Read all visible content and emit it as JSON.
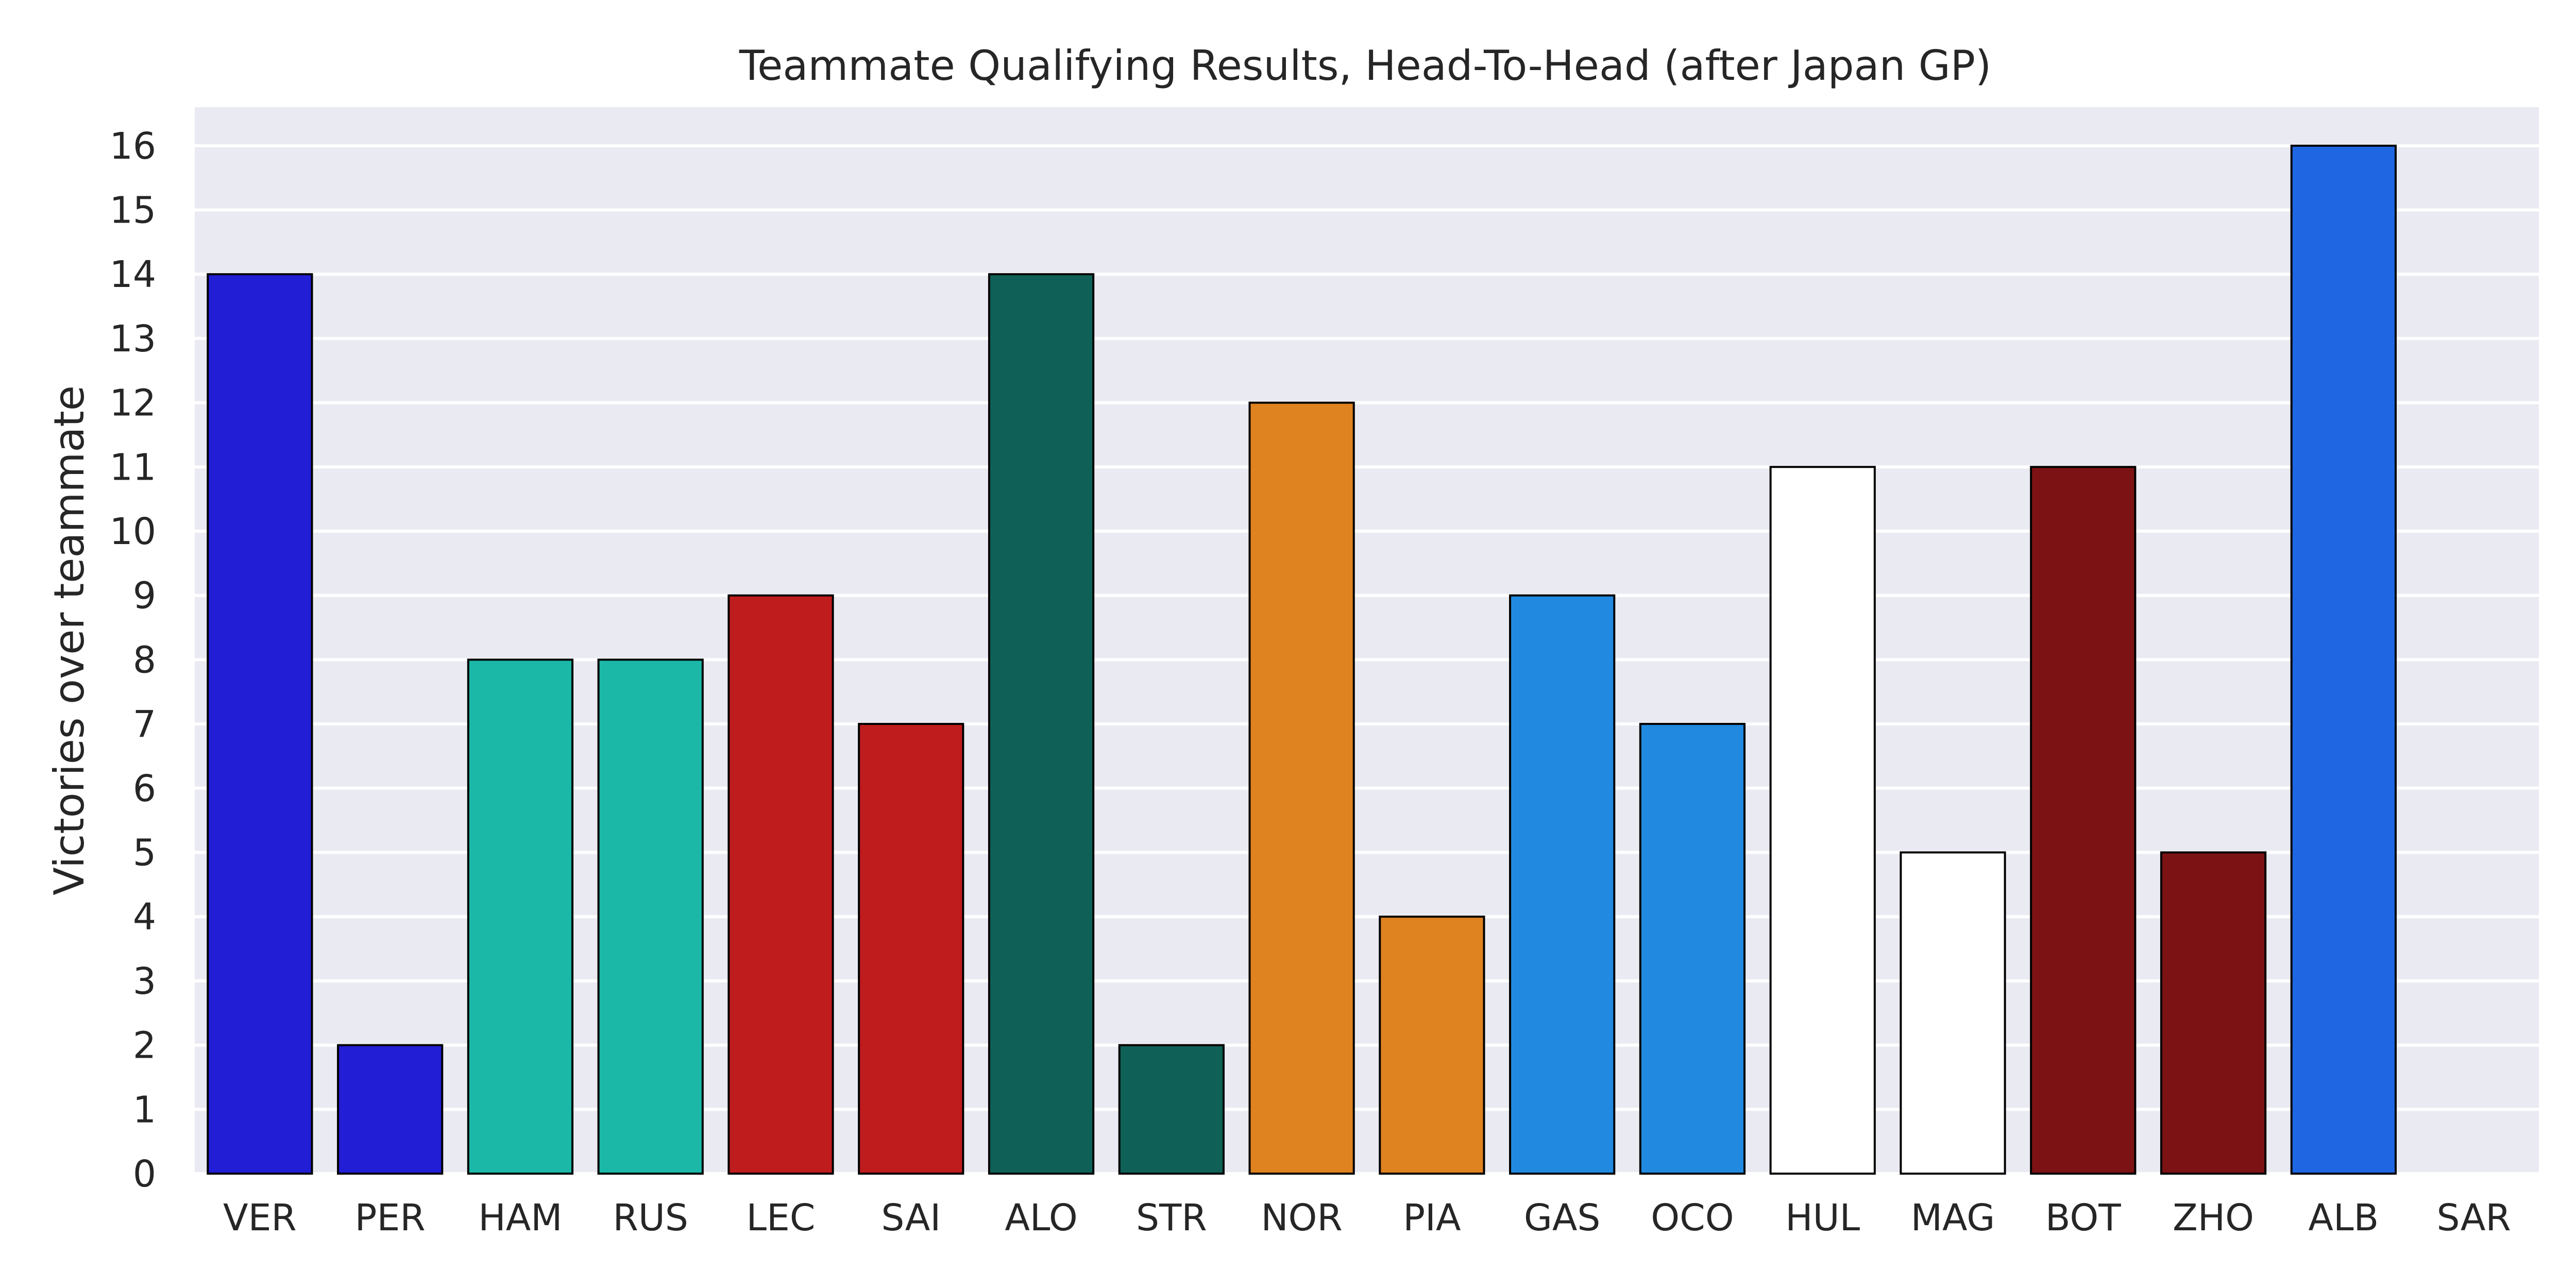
{
  "chart_data": {
    "type": "bar",
    "title": "Teammate Qualifying Results, Head-To-Head (after Japan GP)",
    "xlabel": "",
    "ylabel": "Victories over teammate",
    "ylim": [
      0,
      16.6
    ],
    "yticks": [
      0,
      1,
      2,
      3,
      4,
      5,
      6,
      7,
      8,
      9,
      10,
      11,
      12,
      13,
      14,
      15,
      16
    ],
    "grid": true,
    "background": "#eaeaf2",
    "categories": [
      "VER",
      "PER",
      "HAM",
      "RUS",
      "LEC",
      "SAI",
      "ALO",
      "STR",
      "NOR",
      "PIA",
      "GAS",
      "OCO",
      "HUL",
      "MAG",
      "BOT",
      "ZHO",
      "ALB",
      "SAR"
    ],
    "values": [
      14,
      2,
      8,
      8,
      9,
      7,
      14,
      2,
      12,
      4,
      9,
      7,
      11,
      5,
      11,
      5,
      16,
      0
    ],
    "colors": [
      "#221ed5",
      "#221ed5",
      "#1bb8a8",
      "#1bb8a8",
      "#bf1c1d",
      "#bf1c1d",
      "#0f6157",
      "#0f6157",
      "#df8220",
      "#df8220",
      "#218ae0",
      "#218ae0",
      "#ffffff",
      "#ffffff",
      "#7c1214",
      "#7c1214",
      "#1f66e3",
      "#1f66e3"
    ]
  }
}
